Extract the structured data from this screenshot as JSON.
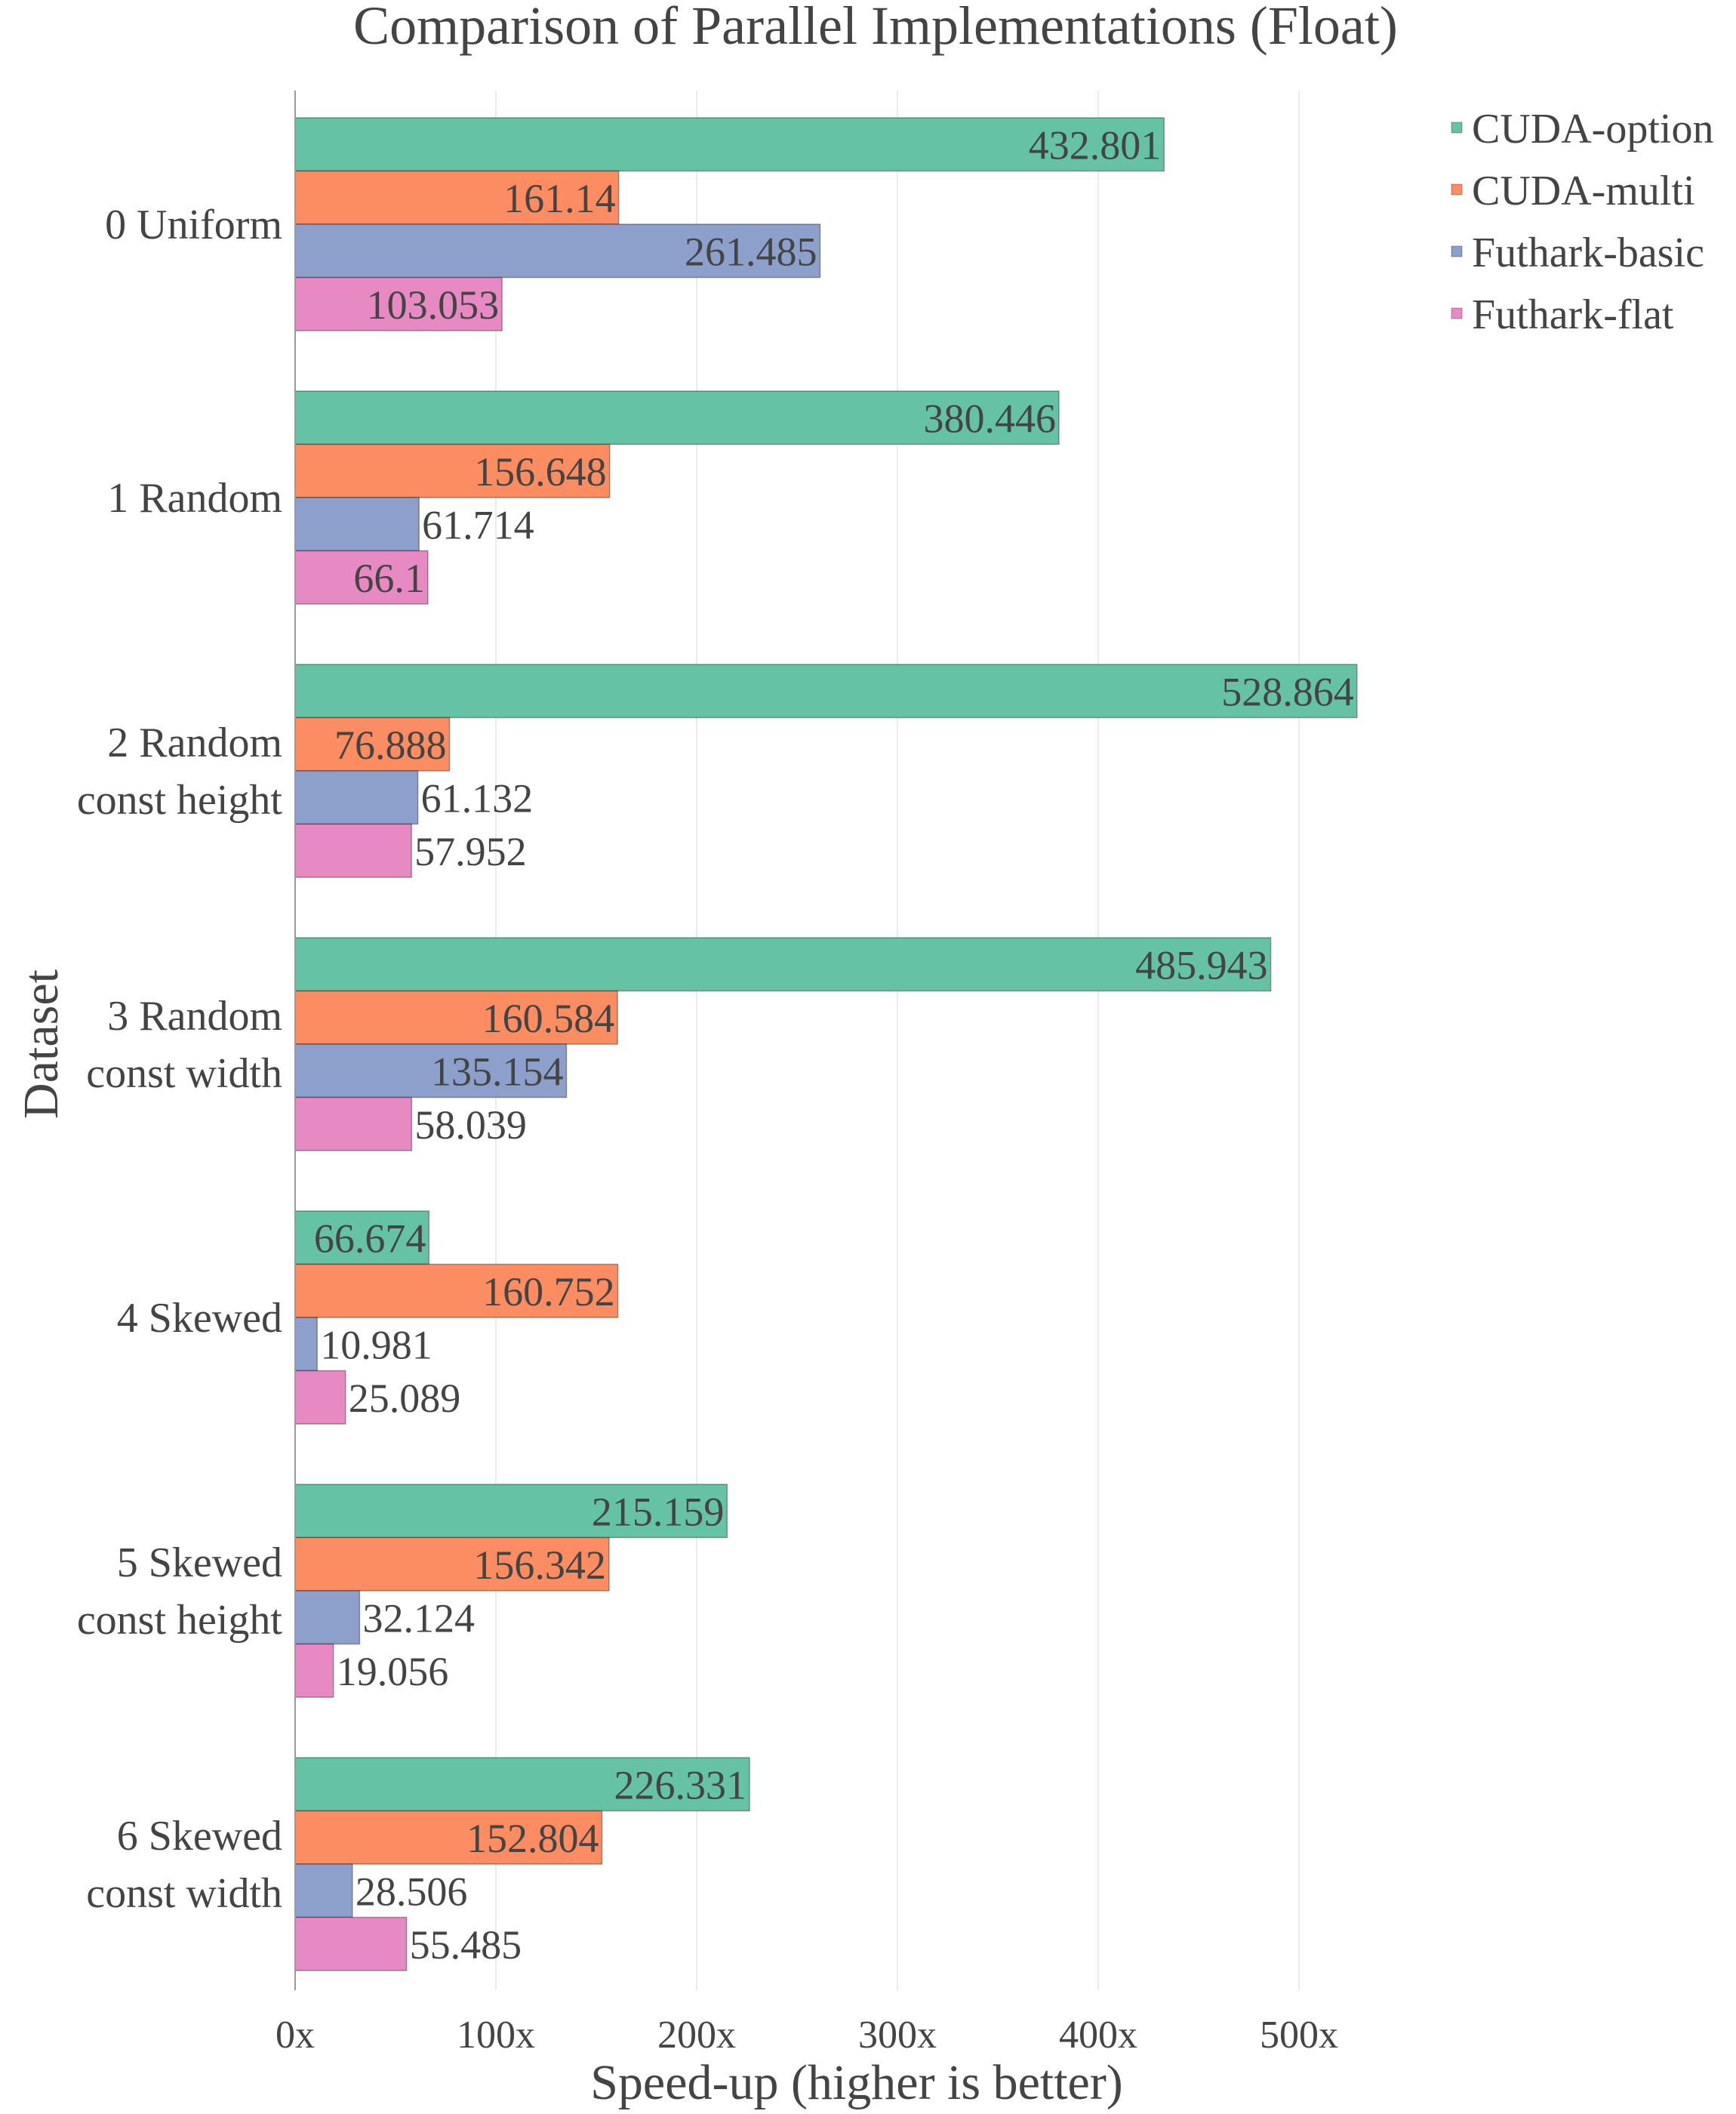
{
  "chart_data": {
    "type": "bar",
    "orientation": "horizontal",
    "title": "Comparison of Parallel Implementations (Float)",
    "xlabel": "Speed-up (higher is better)",
    "ylabel": "Dataset",
    "xlim": [
      0,
      550
    ],
    "xticks": [
      0,
      100,
      200,
      300,
      400,
      500
    ],
    "xtick_labels": [
      "0x",
      "100x",
      "200x",
      "300x",
      "400x",
      "500x"
    ],
    "grid": true,
    "legend_position": "top-right",
    "categories": [
      [
        "0 Uniform"
      ],
      [
        "1 Random"
      ],
      [
        "2 Random",
        "const height"
      ],
      [
        "3 Random",
        "const width"
      ],
      [
        "4 Skewed"
      ],
      [
        "5 Skewed",
        "const height"
      ],
      [
        "6 Skewed",
        "const width"
      ]
    ],
    "series": [
      {
        "name": "CUDA-option",
        "color": "#66c2a5",
        "values": [
          432.801,
          380.446,
          528.864,
          485.943,
          66.674,
          215.159,
          226.331
        ],
        "labels": [
          "432.801",
          "380.446",
          "528.864",
          "485.943",
          "66.674",
          "215.159",
          "226.331"
        ]
      },
      {
        "name": "CUDA-multi",
        "color": "#fc8d62",
        "values": [
          161.14,
          156.648,
          76.888,
          160.584,
          160.752,
          156.342,
          152.804
        ],
        "labels": [
          "161.14",
          "156.648",
          "76.888",
          "160.584",
          "160.752",
          "156.342",
          "152.804"
        ]
      },
      {
        "name": "Futhark-basic",
        "color": "#8da0cb",
        "values": [
          261.485,
          61.714,
          61.132,
          135.154,
          10.981,
          32.124,
          28.506
        ],
        "labels": [
          "261.485",
          "61.714",
          "61.132",
          "135.154",
          "10.981",
          "32.124",
          "28.506"
        ]
      },
      {
        "name": "Futhark-flat",
        "color": "#e78ac3",
        "values": [
          103.053,
          66.1,
          57.952,
          58.039,
          25.089,
          19.056,
          55.485
        ],
        "labels": [
          "103.053",
          "66.1",
          "57.952",
          "58.039",
          "25.089",
          "19.056",
          "55.485"
        ]
      }
    ]
  }
}
